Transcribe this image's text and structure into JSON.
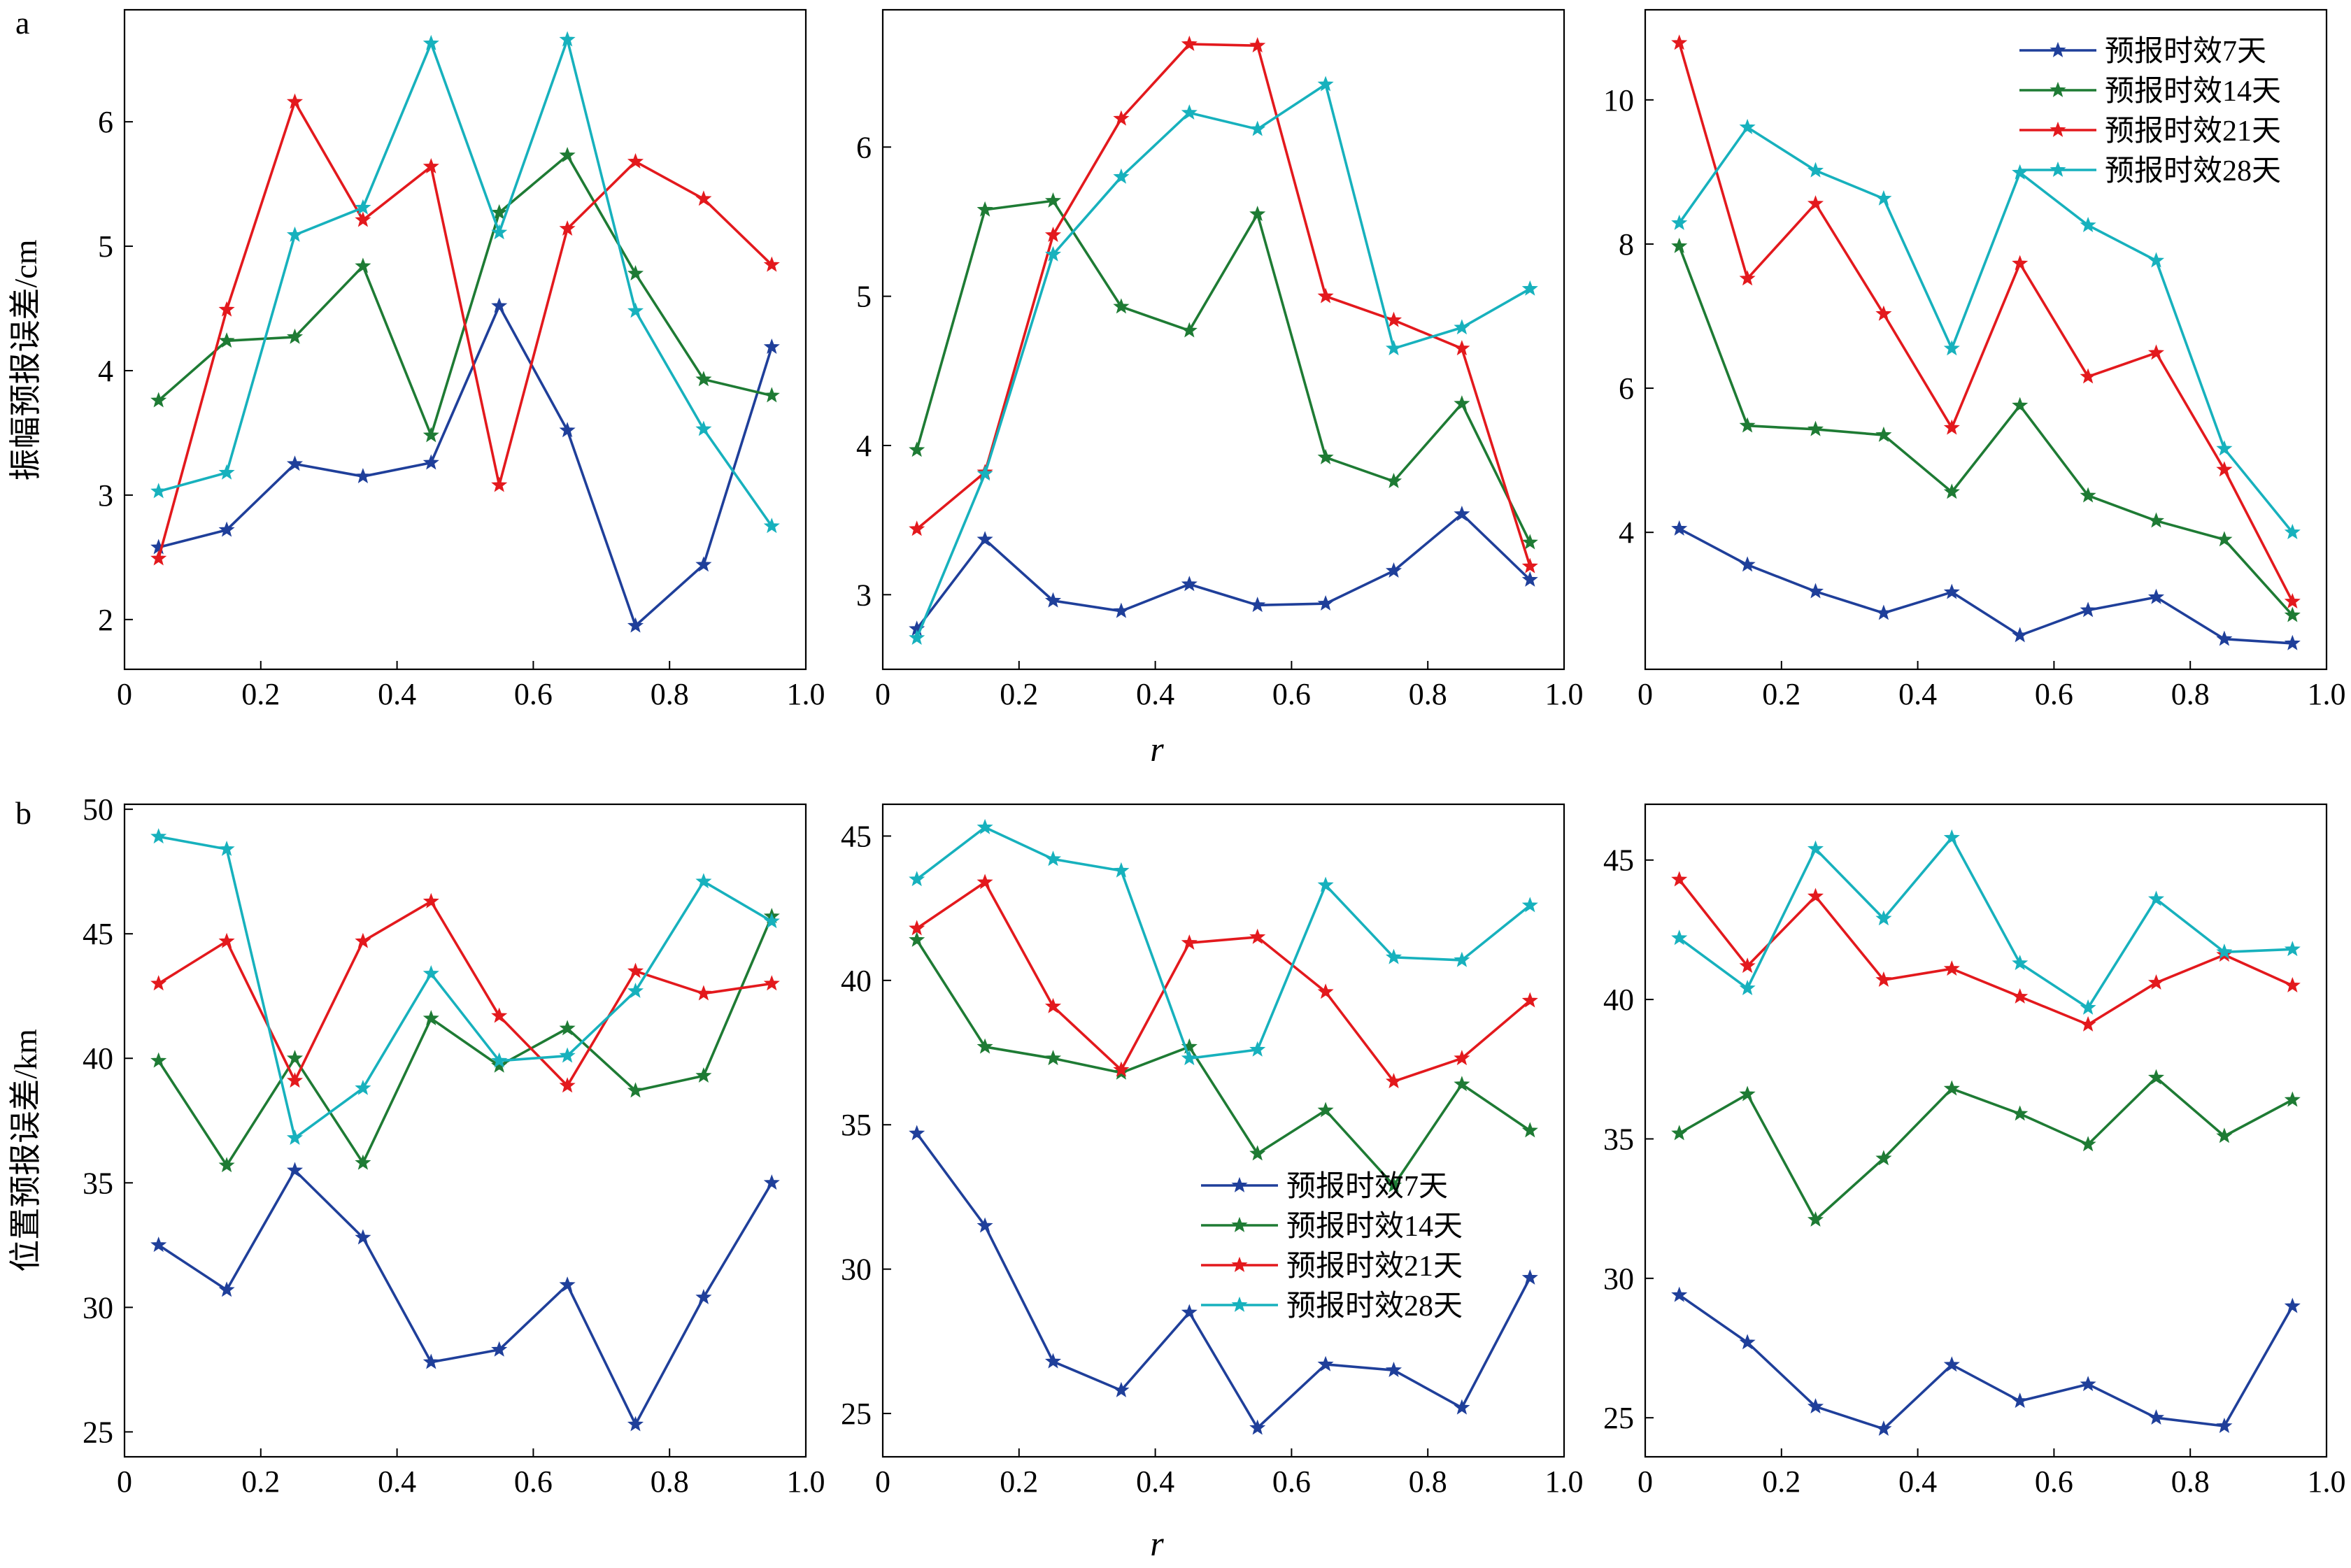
{
  "panel_labels": {
    "a": "a",
    "b": "b"
  },
  "row_ylabels": {
    "a": "振幅预报误差/cm",
    "b": "位置预报误差/km"
  },
  "xlabel": "r",
  "legend_entries": [
    "预报时效7天",
    "预报时效14天",
    "预报时效21天",
    "预报时效28天"
  ],
  "series_colors": [
    "#1f3f9a",
    "#1e7b34",
    "#e3191d",
    "#17b1bd"
  ],
  "chart_data": [
    {
      "type": "line",
      "row": "a",
      "col": 1,
      "x": [
        0.05,
        0.15,
        0.25,
        0.35,
        0.45,
        0.55,
        0.65,
        0.75,
        0.85,
        0.95
      ],
      "xlim": [
        0,
        1.0
      ],
      "xticks": [
        "0",
        "0.2",
        "0.4",
        "0.6",
        "0.8",
        "1.0"
      ],
      "ylim": [
        1.6,
        6.9
      ],
      "yticks": [
        2,
        3,
        4,
        5,
        6
      ],
      "legend": "none",
      "series": [
        {
          "name": "预报时效7天",
          "values": [
            2.58,
            2.72,
            3.25,
            3.15,
            3.26,
            4.52,
            3.52,
            1.95,
            2.44,
            4.19
          ]
        },
        {
          "name": "预报时效14天",
          "values": [
            3.76,
            4.24,
            4.27,
            4.84,
            3.48,
            5.27,
            5.73,
            4.78,
            3.93,
            3.8
          ]
        },
        {
          "name": "预报时效21天",
          "values": [
            2.49,
            4.49,
            6.16,
            5.21,
            5.64,
            3.08,
            5.14,
            5.68,
            5.38,
            4.85
          ]
        },
        {
          "name": "预报时效28天",
          "values": [
            3.03,
            3.18,
            5.09,
            5.31,
            6.63,
            5.11,
            6.66,
            4.48,
            3.53,
            2.75
          ]
        }
      ]
    },
    {
      "type": "line",
      "row": "a",
      "col": 2,
      "x": [
        0.05,
        0.15,
        0.25,
        0.35,
        0.45,
        0.55,
        0.65,
        0.75,
        0.85,
        0.95
      ],
      "xlim": [
        0,
        1.0
      ],
      "xticks": [
        "0",
        "0.2",
        "0.4",
        "0.6",
        "0.8",
        "1.0"
      ],
      "ylim": [
        2.5,
        6.92
      ],
      "yticks": [
        3,
        4,
        5,
        6
      ],
      "legend": "none",
      "series": [
        {
          "name": "预报时效7天",
          "values": [
            2.77,
            3.37,
            2.96,
            2.89,
            3.07,
            2.93,
            2.94,
            3.16,
            3.54,
            3.1
          ]
        },
        {
          "name": "预报时效14天",
          "values": [
            3.97,
            5.58,
            5.64,
            4.93,
            4.77,
            5.55,
            3.92,
            3.76,
            4.28,
            3.35
          ]
        },
        {
          "name": "预报时效21天",
          "values": [
            3.44,
            3.82,
            5.41,
            6.19,
            6.69,
            6.68,
            5.0,
            4.84,
            4.65,
            3.19
          ]
        },
        {
          "name": "预报时效28天",
          "values": [
            2.71,
            3.81,
            5.28,
            5.8,
            6.23,
            6.12,
            6.42,
            4.65,
            4.79,
            5.05
          ]
        }
      ]
    },
    {
      "type": "line",
      "row": "a",
      "col": 3,
      "x": [
        0.05,
        0.15,
        0.25,
        0.35,
        0.45,
        0.55,
        0.65,
        0.75,
        0.85,
        0.95
      ],
      "xlim": [
        0,
        1.0
      ],
      "xticks": [
        "0",
        "0.2",
        "0.4",
        "0.6",
        "0.8",
        "1.0"
      ],
      "ylim": [
        2.1,
        11.25
      ],
      "yticks": [
        4,
        6,
        8,
        10
      ],
      "legend": "top-right",
      "series": [
        {
          "name": "预报时效7天",
          "values": [
            4.05,
            3.55,
            3.18,
            2.88,
            3.17,
            2.57,
            2.92,
            3.1,
            2.52,
            2.46
          ]
        },
        {
          "name": "预报时效14天",
          "values": [
            7.97,
            5.48,
            5.43,
            5.35,
            4.56,
            5.76,
            4.51,
            4.16,
            3.9,
            2.85
          ]
        },
        {
          "name": "预报时效21天",
          "values": [
            10.79,
            7.52,
            8.56,
            7.03,
            5.45,
            7.73,
            6.16,
            6.49,
            4.87,
            3.04
          ]
        },
        {
          "name": "预报时效28天",
          "values": [
            8.29,
            9.62,
            9.02,
            8.63,
            6.55,
            8.99,
            8.26,
            7.77,
            5.16,
            4.0
          ]
        }
      ]
    },
    {
      "type": "line",
      "row": "b",
      "col": 1,
      "x": [
        0.05,
        0.15,
        0.25,
        0.35,
        0.45,
        0.55,
        0.65,
        0.75,
        0.85,
        0.95
      ],
      "xlim": [
        0,
        1.0
      ],
      "xticks": [
        "0",
        "0.2",
        "0.4",
        "0.6",
        "0.8",
        "1.0"
      ],
      "ylim": [
        24,
        50.2
      ],
      "yticks": [
        25,
        30,
        35,
        40,
        45,
        50
      ],
      "legend": "none",
      "series": [
        {
          "name": "预报时效7天",
          "values": [
            32.5,
            30.7,
            35.5,
            32.8,
            27.8,
            28.3,
            30.9,
            25.3,
            30.4,
            35.0
          ]
        },
        {
          "name": "预报时效14天",
          "values": [
            39.9,
            35.7,
            40.0,
            35.8,
            41.6,
            39.7,
            41.2,
            38.7,
            39.3,
            45.7
          ]
        },
        {
          "name": "预报时效21天",
          "values": [
            43.0,
            44.7,
            39.1,
            44.7,
            46.3,
            41.7,
            38.9,
            43.5,
            42.6,
            43.0
          ]
        },
        {
          "name": "预报时效28天",
          "values": [
            48.9,
            48.4,
            36.8,
            38.8,
            43.4,
            39.9,
            40.1,
            42.7,
            47.1,
            45.5
          ]
        }
      ]
    },
    {
      "type": "line",
      "row": "b",
      "col": 2,
      "x": [
        0.05,
        0.15,
        0.25,
        0.35,
        0.45,
        0.55,
        0.65,
        0.75,
        0.85,
        0.95
      ],
      "xlim": [
        0,
        1.0
      ],
      "xticks": [
        "0",
        "0.2",
        "0.4",
        "0.6",
        "0.8",
        "1.0"
      ],
      "ylim": [
        23.5,
        46.1
      ],
      "yticks": [
        25,
        30,
        35,
        40,
        45
      ],
      "legend": "lower-right",
      "series": [
        {
          "name": "预报时效7天",
          "values": [
            34.7,
            31.5,
            26.8,
            25.8,
            28.5,
            24.5,
            26.7,
            26.5,
            25.2,
            29.7
          ]
        },
        {
          "name": "预报时效14天",
          "values": [
            41.4,
            37.7,
            37.3,
            36.8,
            37.7,
            34.0,
            35.5,
            32.9,
            36.4,
            34.8
          ]
        },
        {
          "name": "预报时效21天",
          "values": [
            41.8,
            43.4,
            39.1,
            36.9,
            41.3,
            41.5,
            39.6,
            36.5,
            37.3,
            39.3
          ]
        },
        {
          "name": "预报时效28天",
          "values": [
            43.5,
            45.3,
            44.2,
            43.8,
            37.3,
            37.6,
            43.3,
            40.8,
            40.7,
            42.6
          ]
        }
      ]
    },
    {
      "type": "line",
      "row": "b",
      "col": 3,
      "x": [
        0.05,
        0.15,
        0.25,
        0.35,
        0.45,
        0.55,
        0.65,
        0.75,
        0.85,
        0.95
      ],
      "xlim": [
        0,
        1.0
      ],
      "xticks": [
        "0",
        "0.2",
        "0.4",
        "0.6",
        "0.8",
        "1.0"
      ],
      "ylim": [
        23.6,
        47.0
      ],
      "yticks": [
        25,
        30,
        35,
        40,
        45
      ],
      "legend": "none",
      "series": [
        {
          "name": "预报时效7天",
          "values": [
            29.4,
            27.7,
            25.4,
            24.6,
            26.9,
            25.6,
            26.2,
            25.0,
            24.7,
            29.0
          ]
        },
        {
          "name": "预报时效14天",
          "values": [
            35.2,
            36.6,
            32.1,
            34.3,
            36.8,
            35.9,
            34.8,
            37.2,
            35.1,
            36.4
          ]
        },
        {
          "name": "预报时效21天",
          "values": [
            44.3,
            41.2,
            43.7,
            40.7,
            41.1,
            40.1,
            39.1,
            40.6,
            41.6,
            40.5
          ]
        },
        {
          "name": "预报时效28天",
          "values": [
            42.2,
            40.4,
            45.4,
            42.9,
            45.8,
            41.3,
            39.7,
            43.6,
            41.7,
            41.8
          ]
        }
      ]
    }
  ]
}
